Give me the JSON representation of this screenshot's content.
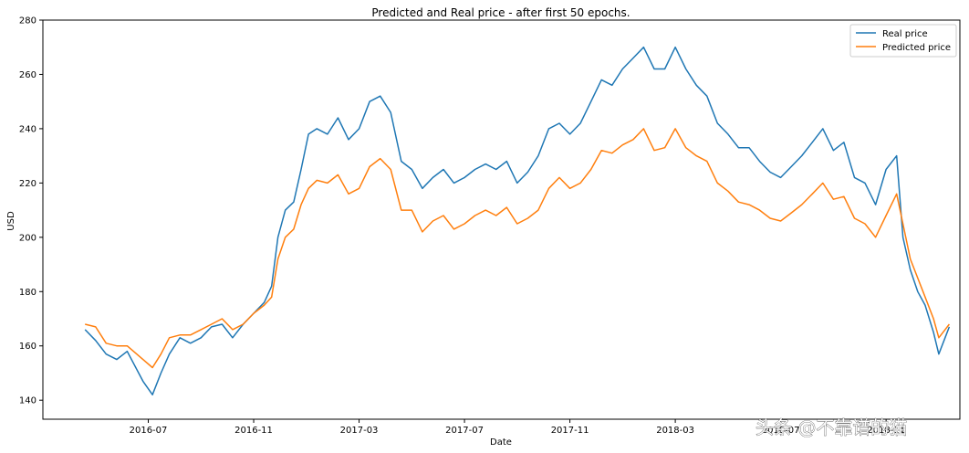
{
  "chart_data": {
    "type": "line",
    "title": "Predicted and Real price - after first 50 epochs.",
    "xlabel": "Date",
    "ylabel": "USD",
    "ylim": [
      133,
      280
    ],
    "xlim": [
      -4,
      83
    ],
    "y_ticks": [
      140,
      160,
      180,
      200,
      220,
      240,
      260,
      280
    ],
    "x_ticks": [
      {
        "label": "2016-07",
        "month_index": 6
      },
      {
        "label": "2016-11",
        "month_index": 16
      },
      {
        "label": "2017-03",
        "month_index": 26
      },
      {
        "label": "2017-07",
        "month_index": 36
      },
      {
        "label": "2017-11",
        "month_index": 46
      },
      {
        "label": "2018-03",
        "month_index": 56
      },
      {
        "label": "2018-07",
        "month_index": 66
      },
      {
        "label": "2018-11",
        "month_index": 76
      }
    ],
    "x_unit": "months since 2016-01 (approx.)",
    "legend": {
      "position": "top-right"
    },
    "series": [
      {
        "name": "Real price",
        "color": "#1f77b4",
        "points": [
          [
            0.0,
            166
          ],
          [
            1.0,
            162
          ],
          [
            2.0,
            157
          ],
          [
            3.0,
            155
          ],
          [
            4.0,
            158
          ],
          [
            5.5,
            147
          ],
          [
            6.4,
            142
          ],
          [
            7.2,
            150
          ],
          [
            8.0,
            157
          ],
          [
            9.0,
            163
          ],
          [
            10.0,
            161
          ],
          [
            11.0,
            163
          ],
          [
            12.0,
            167
          ],
          [
            13.0,
            168
          ],
          [
            14.0,
            163
          ],
          [
            15.0,
            168
          ],
          [
            16.0,
            172
          ],
          [
            17.0,
            176
          ],
          [
            17.7,
            182
          ],
          [
            18.3,
            200
          ],
          [
            19.0,
            210
          ],
          [
            19.8,
            213
          ],
          [
            20.5,
            225
          ],
          [
            21.2,
            238
          ],
          [
            22.0,
            240
          ],
          [
            23.0,
            238
          ],
          [
            24.0,
            244
          ],
          [
            25.0,
            236
          ],
          [
            26.0,
            240
          ],
          [
            27.0,
            250
          ],
          [
            28.0,
            252
          ],
          [
            29.0,
            246
          ],
          [
            30.0,
            228
          ],
          [
            31.0,
            225
          ],
          [
            32.0,
            218
          ],
          [
            33.0,
            222
          ],
          [
            34.0,
            225
          ],
          [
            35.0,
            220
          ],
          [
            36.0,
            222
          ],
          [
            37.0,
            225
          ],
          [
            38.0,
            227
          ],
          [
            39.0,
            225
          ],
          [
            40.0,
            228
          ],
          [
            41.0,
            220
          ],
          [
            42.0,
            224
          ],
          [
            43.0,
            230
          ],
          [
            44.0,
            240
          ],
          [
            45.0,
            242
          ],
          [
            46.0,
            238
          ],
          [
            47.0,
            242
          ],
          [
            48.0,
            250
          ],
          [
            49.0,
            258
          ],
          [
            50.0,
            256
          ],
          [
            51.0,
            262
          ],
          [
            52.0,
            266
          ],
          [
            53.0,
            270
          ],
          [
            54.0,
            262
          ],
          [
            55.0,
            262
          ],
          [
            56.0,
            270
          ],
          [
            57.0,
            262
          ],
          [
            58.0,
            256
          ],
          [
            59.0,
            252
          ],
          [
            60.0,
            242
          ],
          [
            61.0,
            238
          ],
          [
            62.0,
            233
          ],
          [
            63.0,
            233
          ],
          [
            64.0,
            228
          ],
          [
            65.0,
            224
          ],
          [
            66.0,
            222
          ],
          [
            67.0,
            226
          ],
          [
            68.0,
            230
          ],
          [
            69.0,
            235
          ],
          [
            70.0,
            240
          ],
          [
            71.0,
            232
          ],
          [
            72.0,
            235
          ],
          [
            73.0,
            222
          ],
          [
            74.0,
            220
          ],
          [
            75.0,
            212
          ],
          [
            76.0,
            225
          ],
          [
            77.0,
            230
          ],
          [
            77.6,
            200
          ],
          [
            78.3,
            188
          ],
          [
            79.0,
            180
          ],
          [
            79.7,
            175
          ],
          [
            80.5,
            165
          ],
          [
            81.0,
            157
          ],
          [
            81.6,
            163
          ],
          [
            82.0,
            167
          ]
        ]
      },
      {
        "name": "Predicted price",
        "color": "#ff7f0e",
        "points": [
          [
            0.0,
            168
          ],
          [
            1.0,
            167
          ],
          [
            2.0,
            161
          ],
          [
            3.0,
            160
          ],
          [
            4.0,
            160
          ],
          [
            5.5,
            155
          ],
          [
            6.4,
            152
          ],
          [
            7.2,
            157
          ],
          [
            8.0,
            163
          ],
          [
            9.0,
            164
          ],
          [
            10.0,
            164
          ],
          [
            11.0,
            166
          ],
          [
            12.0,
            168
          ],
          [
            13.0,
            170
          ],
          [
            14.0,
            166
          ],
          [
            15.0,
            168
          ],
          [
            16.0,
            172
          ],
          [
            17.0,
            175
          ],
          [
            17.7,
            178
          ],
          [
            18.3,
            192
          ],
          [
            19.0,
            200
          ],
          [
            19.8,
            203
          ],
          [
            20.5,
            212
          ],
          [
            21.2,
            218
          ],
          [
            22.0,
            221
          ],
          [
            23.0,
            220
          ],
          [
            24.0,
            223
          ],
          [
            25.0,
            216
          ],
          [
            26.0,
            218
          ],
          [
            27.0,
            226
          ],
          [
            28.0,
            229
          ],
          [
            29.0,
            225
          ],
          [
            30.0,
            210
          ],
          [
            31.0,
            210
          ],
          [
            32.0,
            202
          ],
          [
            33.0,
            206
          ],
          [
            34.0,
            208
          ],
          [
            35.0,
            203
          ],
          [
            36.0,
            205
          ],
          [
            37.0,
            208
          ],
          [
            38.0,
            210
          ],
          [
            39.0,
            208
          ],
          [
            40.0,
            211
          ],
          [
            41.0,
            205
          ],
          [
            42.0,
            207
          ],
          [
            43.0,
            210
          ],
          [
            44.0,
            218
          ],
          [
            45.0,
            222
          ],
          [
            46.0,
            218
          ],
          [
            47.0,
            220
          ],
          [
            48.0,
            225
          ],
          [
            49.0,
            232
          ],
          [
            50.0,
            231
          ],
          [
            51.0,
            234
          ],
          [
            52.0,
            236
          ],
          [
            53.0,
            240
          ],
          [
            54.0,
            232
          ],
          [
            55.0,
            233
          ],
          [
            56.0,
            240
          ],
          [
            57.0,
            233
          ],
          [
            58.0,
            230
          ],
          [
            59.0,
            228
          ],
          [
            60.0,
            220
          ],
          [
            61.0,
            217
          ],
          [
            62.0,
            213
          ],
          [
            63.0,
            212
          ],
          [
            64.0,
            210
          ],
          [
            65.0,
            207
          ],
          [
            66.0,
            206
          ],
          [
            67.0,
            209
          ],
          [
            68.0,
            212
          ],
          [
            69.0,
            216
          ],
          [
            70.0,
            220
          ],
          [
            71.0,
            214
          ],
          [
            72.0,
            215
          ],
          [
            73.0,
            207
          ],
          [
            74.0,
            205
          ],
          [
            75.0,
            200
          ],
          [
            76.0,
            208
          ],
          [
            77.0,
            216
          ],
          [
            77.6,
            205
          ],
          [
            78.3,
            192
          ],
          [
            79.0,
            185
          ],
          [
            79.7,
            178
          ],
          [
            80.5,
            170
          ],
          [
            81.0,
            163
          ],
          [
            81.6,
            166
          ],
          [
            82.0,
            168
          ]
        ]
      }
    ],
    "watermark": "头条 @不靠谱的猫"
  }
}
